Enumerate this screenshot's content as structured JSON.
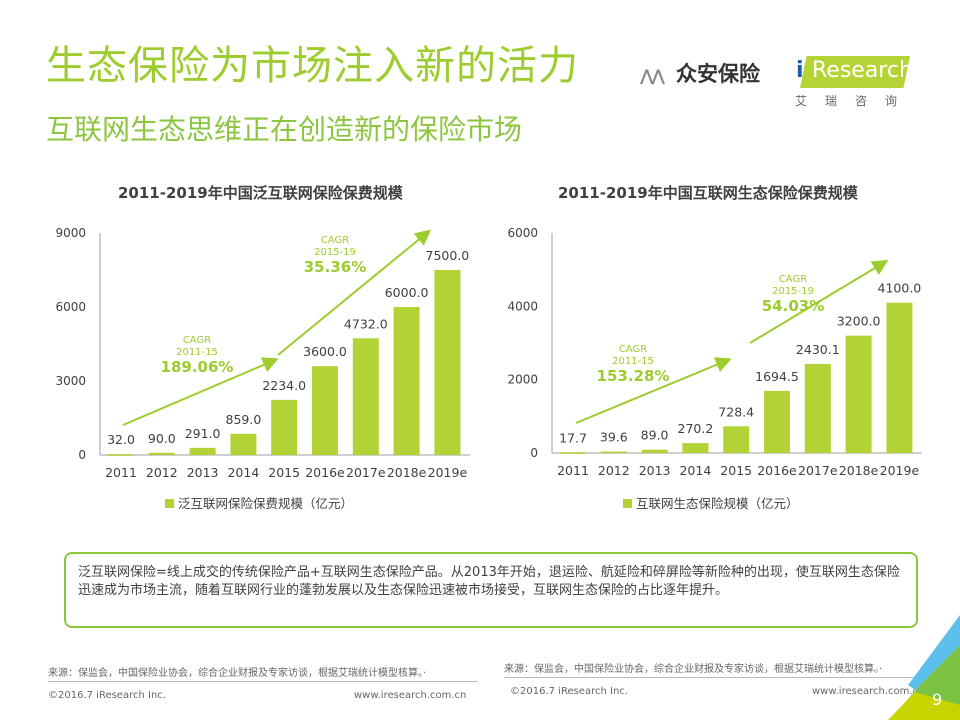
{
  "header": {
    "title": "生态保险为市场注入新的活力",
    "subtitle": "互联网生态思维正在创造新的保险市场"
  },
  "logo": {
    "zhongan_mark": "⋀⋀",
    "zhongan": "众安保险",
    "iresearch_i": "i",
    "iresearch": "Research",
    "iresearch_cn": "艾瑞咨询"
  },
  "colors": {
    "accent": "#9ccc2e",
    "bar": "#b2d235",
    "border": "#8cc63f"
  },
  "chart_data": [
    {
      "type": "bar",
      "title": "2011-2019年中国泛互联网保险保费规模",
      "categories": [
        "2011",
        "2012",
        "2013",
        "2014",
        "2015",
        "2016e",
        "2017e",
        "2018e",
        "2019e"
      ],
      "values": [
        32.0,
        90.0,
        291.0,
        859.0,
        2234.0,
        3600.0,
        4732.0,
        6000.0,
        7500.0
      ],
      "labels": [
        "32.0",
        "90.0",
        "291.0",
        "859.0",
        "2234.0",
        "3600.0",
        "4732.0",
        "6000.0",
        "7500.0"
      ],
      "yticks": [
        "0",
        "3000",
        "6000",
        "9000"
      ],
      "ylim": [
        0,
        9000
      ],
      "legend": "泛互联网保险保费规模（亿元）",
      "annotations": [
        {
          "label": "CAGR",
          "period": "2011-15",
          "value": "189.06%"
        },
        {
          "label": "CAGR",
          "period": "2015-19",
          "value": "35.36%"
        }
      ]
    },
    {
      "type": "bar",
      "title": "2011-2019年中国互联网生态保险保费规模",
      "categories": [
        "2011",
        "2012",
        "2013",
        "2014",
        "2015",
        "2016e",
        "2017e",
        "2018e",
        "2019e"
      ],
      "values": [
        17.7,
        39.6,
        89.0,
        270.2,
        728.4,
        1694.5,
        2430.1,
        3200.0,
        4100.0
      ],
      "labels": [
        "17.7",
        "39.6",
        "89.0",
        "270.2",
        "728.4",
        "1694.5",
        "2430.1",
        "3200.0",
        "4100.0"
      ],
      "yticks": [
        "0",
        "2000",
        "4000",
        "6000"
      ],
      "ylim": [
        0,
        6000
      ],
      "legend": "互联网生态保险规模（亿元）",
      "annotations": [
        {
          "label": "CAGR",
          "period": "2011-15",
          "value": "153.28%"
        },
        {
          "label": "CAGR",
          "period": "2015-19",
          "value": "54.03%"
        }
      ]
    }
  ],
  "note": "泛互联网保险=线上成交的传统保险产品+互联网生态保险产品。从2013年开始，退运险、航延险和碎屏险等新险种的出现，使互联网生态保险迅速成为市场主流，随着互联网行业的蓬勃发展以及生态保险迅速被市场接受，互联网生态保险的占比逐年提升。",
  "footer": {
    "source_left": "来源：保监会，中国保险业协会，综合企业财报及专家访谈，根据艾瑞统计模型核算。·",
    "source_right": "来源：保监会，中国保险业协会，综合企业财报及专家访谈，根据艾瑞统计模型核算。·",
    "copyright_left": "©2016.7 iResearch Inc.",
    "website_left": "www.iresearch.com.cn",
    "copyright_right": "©2016.7 iResearch Inc.",
    "website_right": "www.iresearch.com.cn",
    "page_number": "9"
  }
}
